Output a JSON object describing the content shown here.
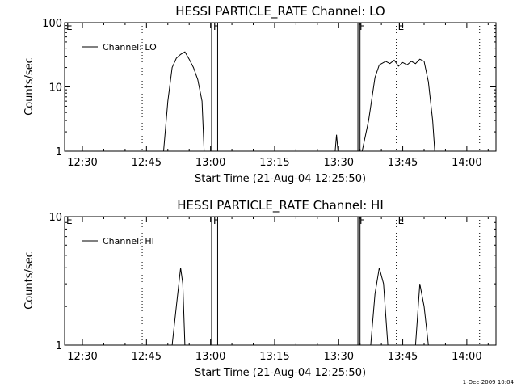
{
  "footer_timestamp": "1-Dec-2009 10:04",
  "chart_data": [
    {
      "type": "line",
      "title": "HESSI PARTICLE_RATE Channel: LO",
      "xlabel": "Start Time (21-Aug-04 12:25:50)",
      "ylabel": "Counts/sec",
      "yscale": "log",
      "xlim": [
        "12:25:50",
        "14:06:50"
      ],
      "ylim": [
        1,
        100
      ],
      "x_ticks": [
        "12:30",
        "12:45",
        "13:00",
        "13:15",
        "13:30",
        "13:45",
        "14:00"
      ],
      "y_ticks": [
        "1",
        "10",
        "100"
      ],
      "legend": {
        "label": "Channel: LO",
        "placement": "top-left"
      },
      "series": [
        {
          "name": "Channel: LO",
          "segments": [
            [
              [
                "12:49:00",
                1
              ],
              [
                "12:50:00",
                6
              ],
              [
                "12:51:00",
                20
              ],
              [
                "12:52:00",
                28
              ],
              [
                "12:53:00",
                32
              ],
              [
                "12:54:00",
                35
              ],
              [
                "12:55:00",
                27
              ],
              [
                "12:56:00",
                20
              ],
              [
                "12:57:00",
                13
              ],
              [
                "12:58:00",
                6
              ],
              [
                "12:58:30",
                1
              ]
            ],
            [
              [
                "13:29:10",
                1
              ],
              [
                "13:29:30",
                1.8
              ],
              [
                "13:29:50",
                1
              ]
            ],
            [
              [
                "13:35:30",
                1
              ],
              [
                "13:37:00",
                3
              ],
              [
                "13:38:30",
                14
              ],
              [
                "13:39:30",
                22
              ],
              [
                "13:41:00",
                25
              ],
              [
                "13:42:00",
                23
              ],
              [
                "13:43:00",
                26
              ],
              [
                "13:44:00",
                21
              ],
              [
                "13:45:00",
                24
              ],
              [
                "13:46:00",
                22
              ],
              [
                "13:47:00",
                25
              ],
              [
                "13:48:00",
                23
              ],
              [
                "13:49:00",
                27
              ],
              [
                "13:50:00",
                25
              ],
              [
                "13:51:00",
                12
              ],
              [
                "13:52:00",
                3
              ],
              [
                "13:52:30",
                1
              ]
            ]
          ]
        }
      ],
      "vlines_solid": [
        "13:00:15",
        "13:01:40",
        "13:34:30",
        "13:35:00"
      ],
      "vlines_dotted": [
        "12:44:00",
        "13:43:30",
        "14:03:00"
      ],
      "markers": [
        {
          "label": "E",
          "at": "12:25:50"
        },
        {
          "label": "F",
          "at": "13:00:15"
        },
        {
          "label": "F",
          "at": "13:34:30"
        },
        {
          "label": "E",
          "at": "13:43:30"
        }
      ]
    },
    {
      "type": "line",
      "title": "HESSI PARTICLE_RATE Channel: HI",
      "xlabel": "Start Time (21-Aug-04 12:25:50)",
      "ylabel": "Counts/sec",
      "yscale": "log",
      "xlim": [
        "12:25:50",
        "14:06:50"
      ],
      "ylim": [
        1,
        10
      ],
      "x_ticks": [
        "12:30",
        "12:45",
        "13:00",
        "13:15",
        "13:30",
        "13:45",
        "14:00"
      ],
      "y_ticks": [
        "1",
        "10"
      ],
      "legend": {
        "label": "Channel: HI",
        "placement": "top-left"
      },
      "series": [
        {
          "name": "Channel: HI",
          "segments": [
            [
              [
                "12:51:00",
                1
              ],
              [
                "12:52:00",
                2
              ],
              [
                "12:53:00",
                4
              ],
              [
                "12:53:30",
                3
              ],
              [
                "12:54:00",
                1
              ]
            ],
            [
              [
                "13:37:30",
                1
              ],
              [
                "13:38:30",
                2.5
              ],
              [
                "13:39:30",
                4
              ],
              [
                "13:40:30",
                3
              ],
              [
                "13:41:30",
                1
              ]
            ],
            [
              [
                "13:48:00",
                1
              ],
              [
                "13:49:00",
                3
              ],
              [
                "13:50:00",
                2
              ],
              [
                "13:51:00",
                1
              ]
            ]
          ]
        }
      ],
      "vlines_solid": [
        "13:00:15",
        "13:01:40",
        "13:34:30",
        "13:35:00"
      ],
      "vlines_dotted": [
        "12:44:00",
        "13:43:30",
        "14:03:00"
      ],
      "markers": [
        {
          "label": "E",
          "at": "12:25:50"
        },
        {
          "label": "F",
          "at": "13:00:15"
        },
        {
          "label": "F",
          "at": "13:34:30"
        },
        {
          "label": "E",
          "at": "13:43:30"
        }
      ]
    }
  ]
}
